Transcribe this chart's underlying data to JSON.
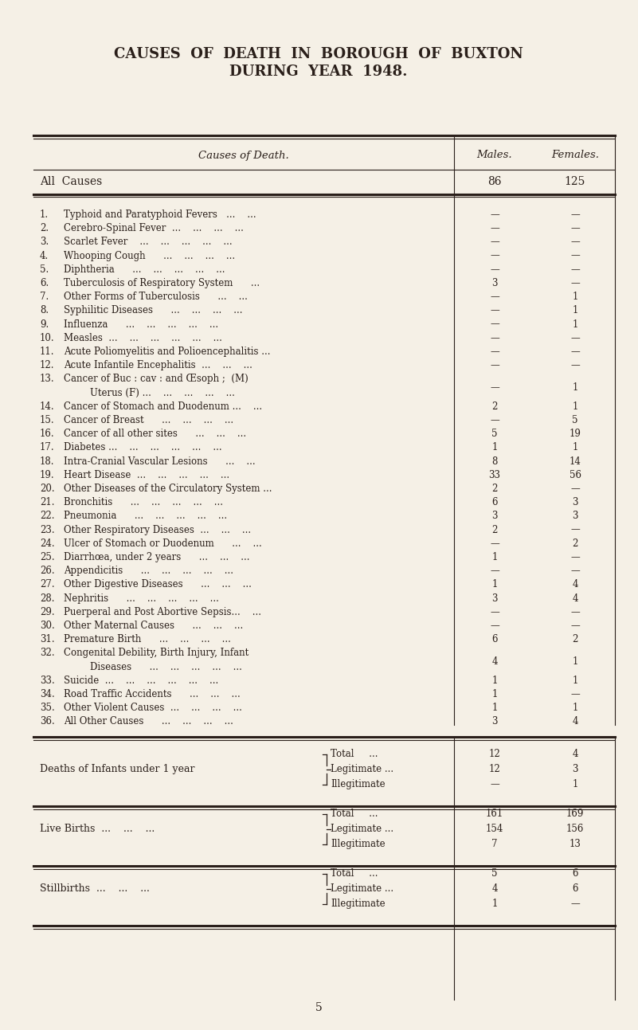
{
  "title_line1": "CAUSES  OF  DEATH  IN  BOROUGH  OF  BUXTON",
  "title_line2": "DURING  YEAR  1948.",
  "bg_color": "#f5f0e6",
  "text_color": "#2a1f1a",
  "header_col1": "Causes of Death.",
  "header_col2": "Males.",
  "header_col3": "Females.",
  "all_causes_label": "All  Causes",
  "all_causes_dots": "...    ...    ...    ...    ...    ...",
  "all_causes_male": "86",
  "all_causes_female": "125",
  "rows": [
    [
      "1.",
      "Typhoid and Paratyphoid Fevers   ...    ...",
      "—",
      "—",
      false
    ],
    [
      "2.",
      "Cerebro-Spinal Fever  ...    ...    ...    ...",
      "—",
      "—",
      false
    ],
    [
      "3.",
      "Scarlet Fever    ...    ...    ...    ...    ...",
      "—",
      "—",
      false
    ],
    [
      "4.",
      "Whooping Cough      ...    ...    ...    ...",
      "—",
      "—",
      false
    ],
    [
      "5.",
      "Diphtheria      ...    ...    ...    ...    ...",
      "—",
      "—",
      false
    ],
    [
      "6.",
      "Tuberculosis of Respiratory System      ...",
      "3",
      "—",
      false
    ],
    [
      "7.",
      "Other Forms of Tuberculosis      ...    ...",
      "—",
      "1",
      false
    ],
    [
      "8.",
      "Syphilitic Diseases      ...    ...    ...    ...",
      "—",
      "1",
      false
    ],
    [
      "9.",
      "Influenza      ...    ...    ...    ...    ...",
      "—",
      "1",
      false
    ],
    [
      "10.",
      "Measles  ...    ...    ...    ...    ...    ...",
      "—",
      "—",
      false
    ],
    [
      "11.",
      "Acute Poliomyelitis and Polioencephalitis ...",
      "—",
      "—",
      false
    ],
    [
      "12.",
      "Acute Infantile Encephalitis  ...    ...    ...",
      "—",
      "—",
      false
    ],
    [
      "13.",
      "Cancer of Buc : cav : and Œsoph ;  (M)",
      "—",
      "1",
      true
    ],
    [
      "14.",
      "Cancer of Stomach and Duodenum ...    ...",
      "2",
      "1",
      false
    ],
    [
      "15.",
      "Cancer of Breast      ...    ...    ...    ...",
      "—",
      "5",
      false
    ],
    [
      "16.",
      "Cancer of all other sites      ...    ...    ...",
      "5",
      "19",
      false
    ],
    [
      "17.",
      "Diabetes ...    ...    ...    ...    ...    ...",
      "1",
      "1",
      false
    ],
    [
      "18.",
      "Intra-Cranial Vascular Lesions      ...    ...",
      "8",
      "14",
      false
    ],
    [
      "19.",
      "Heart Disease  ...    ...    ...    ...    ...",
      "33",
      "56",
      false
    ],
    [
      "20.",
      "Other Diseases of the Circulatory System ...",
      "2",
      "—",
      false
    ],
    [
      "21.",
      "Bronchitis      ...    ...    ...    ...    ...",
      "6",
      "3",
      false
    ],
    [
      "22.",
      "Pneumonia      ...    ...    ...    ...    ...",
      "3",
      "3",
      false
    ],
    [
      "23.",
      "Other Respiratory Diseases  ...    ...    ...",
      "2",
      "—",
      false
    ],
    [
      "24.",
      "Ulcer of Stomach or Duodenum      ...    ...",
      "—",
      "2",
      false
    ],
    [
      "25.",
      "Diarrhœa, under 2 years      ...    ...    ...",
      "1",
      "—",
      false
    ],
    [
      "26.",
      "Appendicitis      ...    ...    ...    ...    ...",
      "—",
      "—",
      false
    ],
    [
      "27.",
      "Other Digestive Diseases      ...    ...    ...",
      "1",
      "4",
      false
    ],
    [
      "28.",
      "Nephritis      ...    ...    ...    ...    ...",
      "3",
      "4",
      false
    ],
    [
      "29.",
      "Puerperal and Post Abortive Sepsis...    ...",
      "—",
      "—",
      false
    ],
    [
      "30.",
      "Other Maternal Causes      ...    ...    ...",
      "—",
      "—",
      false
    ],
    [
      "31.",
      "Premature Birth      ...    ...    ...    ...",
      "6",
      "2",
      false
    ],
    [
      "32.",
      "Congenital Debility, Birth Injury, Infant",
      "4",
      "1",
      true
    ],
    [
      "33.",
      "Suicide  ...    ...    ...    ...    ...    ...",
      "1",
      "1",
      false
    ],
    [
      "34.",
      "Road Traffic Accidents      ...    ...    ...",
      "1",
      "—",
      false
    ],
    [
      "35.",
      "Other Violent Causes  ...    ...    ...    ...",
      "1",
      "1",
      false
    ],
    [
      "36.",
      "All Other Causes      ...    ...    ...    ...",
      "3",
      "4",
      false
    ]
  ],
  "row13_line2": "    Uterus (F) ...    ...    ...    ...    ...",
  "row32_line2": "    Diseases      ...    ...    ...    ...    ...",
  "bottom_sections": [
    {
      "label": "Deaths of Infants under 1 year",
      "sub": [
        "Total     ...",
        "Legitimate ...",
        "Illegitimate"
      ],
      "males": [
        "12",
        "12",
        "—"
      ],
      "females": [
        "4",
        "3",
        "1"
      ]
    },
    {
      "label": "Live Births  ...    ...    ...",
      "sub": [
        "Total     ...",
        "Legitimate ...",
        "Illegitimate"
      ],
      "males": [
        "161",
        "154",
        "7"
      ],
      "females": [
        "169",
        "156",
        "13"
      ]
    },
    {
      "label": "Stillbirths  ...    ...    ...",
      "sub": [
        "Total     ...",
        "Legitimate ...",
        "Illegitimate"
      ],
      "males": [
        "5",
        "4",
        "1"
      ],
      "females": [
        "6",
        "6",
        "—"
      ]
    }
  ],
  "page_number": "5"
}
